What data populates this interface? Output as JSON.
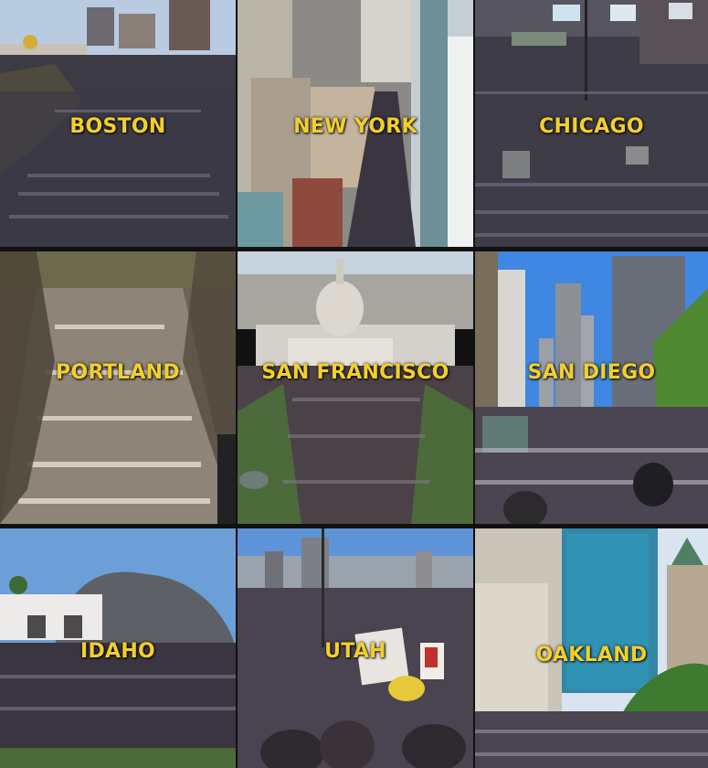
{
  "tiles": [
    {
      "city": "BOSTON"
    },
    {
      "city": "NEW YORK"
    },
    {
      "city": "CHICAGO"
    },
    {
      "city": "PORTLAND"
    },
    {
      "city": "SAN FRANCISCO"
    },
    {
      "city": "SAN DIEGO"
    },
    {
      "city": "IDAHO"
    },
    {
      "city": "UTAH"
    },
    {
      "city": "OAKLAND"
    }
  ],
  "colors": {
    "label": "#f3cf2d",
    "sky": "#a9c6e4",
    "crowd": "#3a3540"
  }
}
